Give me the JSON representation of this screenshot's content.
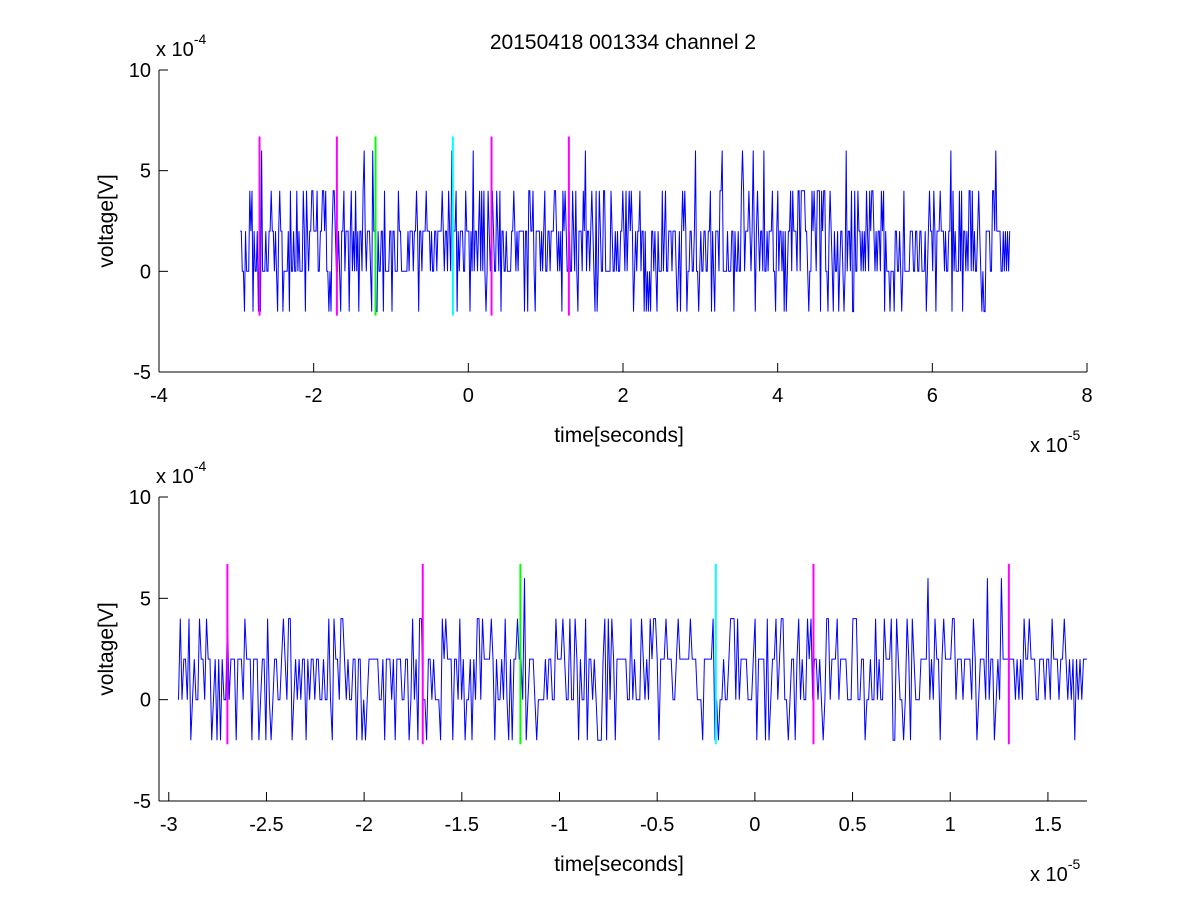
{
  "chart_data": [
    {
      "type": "line",
      "title": "20150418 001334 channel 2",
      "xlabel": "time[seconds]",
      "ylabel": "voltage[V]",
      "x_multiplier_label": {
        "base": "x 10",
        "exp": "-5"
      },
      "y_multiplier_label": {
        "base": "x 10",
        "exp": "-4"
      },
      "xlim": [
        -4,
        8
      ],
      "ylim": [
        -5,
        10
      ],
      "xticks": [
        "-4",
        "-2",
        "0",
        "2",
        "4",
        "6",
        "8"
      ],
      "xtick_values": [
        -4,
        -2,
        0,
        2,
        4,
        6,
        8
      ],
      "yticks": [
        "-5",
        "0",
        "5",
        "10"
      ],
      "ytick_values": [
        -5,
        0,
        5,
        10
      ],
      "series_color": "#0000ff",
      "signal_range": [
        -2.95,
        7.0
      ],
      "markers": [
        {
          "x": -2.7,
          "color": "#ff00ff",
          "y_range": [
            -2.2,
            6.7
          ]
        },
        {
          "x": -1.7,
          "color": "#ff00ff",
          "y_range": [
            -2.2,
            6.7
          ]
        },
        {
          "x": -1.2,
          "color": "#00ff00",
          "y_range": [
            -2.2,
            6.7
          ]
        },
        {
          "x": -0.2,
          "color": "#00ffff",
          "y_range": [
            -2.2,
            6.7
          ]
        },
        {
          "x": 0.3,
          "color": "#ff00ff",
          "y_range": [
            -2.2,
            6.7
          ]
        },
        {
          "x": 1.3,
          "color": "#ff00ff",
          "y_range": [
            -2.2,
            6.7
          ]
        }
      ]
    },
    {
      "type": "line",
      "title": "",
      "xlabel": "time[seconds]",
      "ylabel": "voltage[V]",
      "x_multiplier_label": {
        "base": "x 10",
        "exp": "-5"
      },
      "y_multiplier_label": {
        "base": "x 10",
        "exp": "-4"
      },
      "xlim": [
        -3.05,
        1.7
      ],
      "ylim": [
        -5,
        10
      ],
      "xticks": [
        "-3",
        "-2.5",
        "-2",
        "-1.5",
        "-1",
        "-0.5",
        "0",
        "0.5",
        "1",
        "1.5"
      ],
      "xtick_values": [
        -3,
        -2.5,
        -2,
        -1.5,
        -1,
        -0.5,
        0,
        0.5,
        1,
        1.5
      ],
      "yticks": [
        "-5",
        "0",
        "5",
        "10"
      ],
      "ytick_values": [
        -5,
        0,
        5,
        10
      ],
      "series_color": "#0000ff",
      "signal_range": [
        -2.95,
        1.7
      ],
      "markers": [
        {
          "x": -2.7,
          "color": "#ff00ff",
          "y_range": [
            -2.2,
            6.7
          ]
        },
        {
          "x": -1.7,
          "color": "#ff00ff",
          "y_range": [
            -2.2,
            6.7
          ]
        },
        {
          "x": -1.2,
          "color": "#00ff00",
          "y_range": [
            -2.2,
            6.7
          ]
        },
        {
          "x": -0.2,
          "color": "#00ffff",
          "y_range": [
            -2.2,
            6.7
          ]
        },
        {
          "x": 0.3,
          "color": "#ff00ff",
          "y_range": [
            -2.2,
            6.7
          ]
        },
        {
          "x": 1.3,
          "color": "#ff00ff",
          "y_range": [
            -2.2,
            6.7
          ]
        }
      ]
    }
  ]
}
